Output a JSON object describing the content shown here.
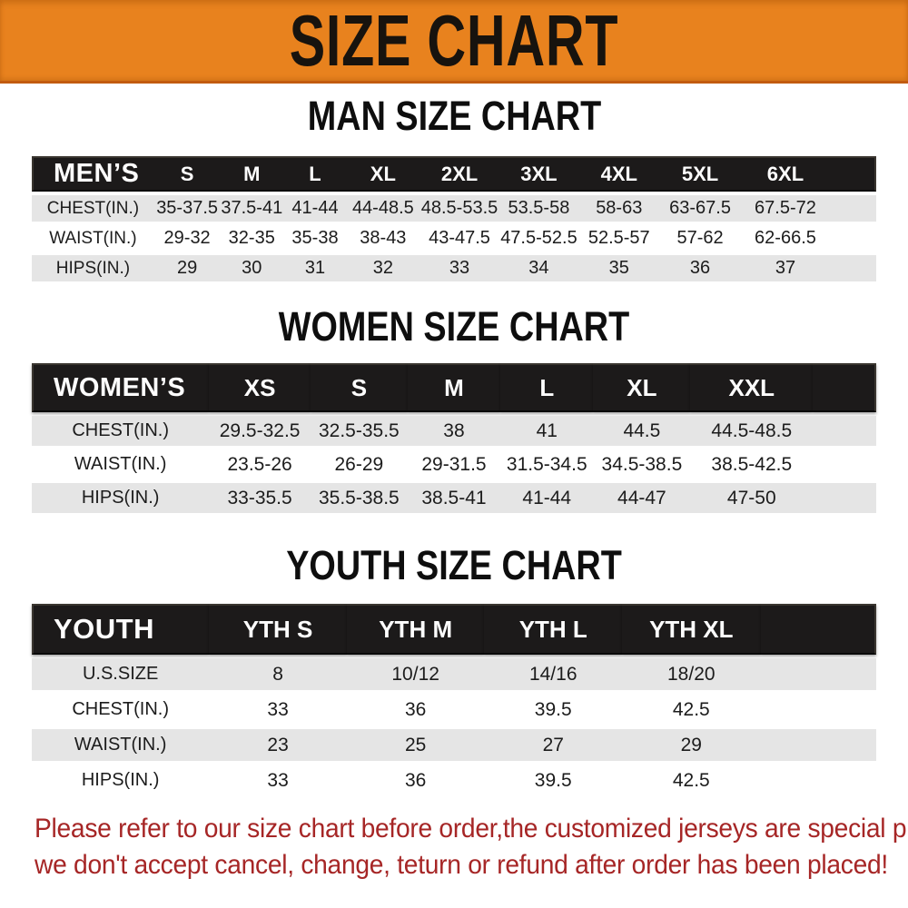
{
  "banner": {
    "title": "SIZE CHART",
    "bg_color": "#E8821E"
  },
  "sections": [
    {
      "heading": "MAN SIZE CHART",
      "corner_label": "MEN’S",
      "columns": [
        "S",
        "M",
        "L",
        "XL",
        "2XL",
        "3XL",
        "4XL",
        "5XL",
        "6XL"
      ],
      "rows": [
        {
          "label": "CHEST(IN.)",
          "values": [
            "35-37.5",
            "37.5-41",
            "41-44",
            "44-48.5",
            "48.5-53.5",
            "53.5-58",
            "58-63",
            "63-67.5",
            "67.5-72"
          ]
        },
        {
          "label": "WAIST(IN.)",
          "values": [
            "29-32",
            "32-35",
            "35-38",
            "38-43",
            "43-47.5",
            "47.5-52.5",
            "52.5-57",
            "57-62",
            "62-66.5"
          ]
        },
        {
          "label": "HIPS(IN.)",
          "values": [
            "29",
            "30",
            "31",
            "32",
            "33",
            "34",
            "35",
            "36",
            "37"
          ]
        }
      ]
    },
    {
      "heading": "WOMEN SIZE CHART",
      "corner_label": "WOMEN’S",
      "columns": [
        "XS",
        "S",
        "M",
        "L",
        "XL",
        "XXL"
      ],
      "rows": [
        {
          "label": "CHEST(IN.)",
          "values": [
            "29.5-32.5",
            "32.5-35.5",
            "38",
            "41",
            "44.5",
            "44.5-48.5"
          ]
        },
        {
          "label": "WAIST(IN.)",
          "values": [
            "23.5-26",
            "26-29",
            "29-31.5",
            "31.5-34.5",
            "34.5-38.5",
            "38.5-42.5"
          ]
        },
        {
          "label": "HIPS(IN.)",
          "values": [
            "33-35.5",
            "35.5-38.5",
            "38.5-41",
            "41-44",
            "44-47",
            "47-50"
          ]
        }
      ]
    },
    {
      "heading": "YOUTH SIZE CHART",
      "corner_label": "YOUTH",
      "columns": [
        "YTH S",
        "YTH M",
        "YTH L",
        "YTH XL"
      ],
      "rows": [
        {
          "label": "U.S.SIZE",
          "values": [
            "8",
            "10/12",
            "14/16",
            "18/20"
          ]
        },
        {
          "label": "CHEST(IN.)",
          "values": [
            "33",
            "36",
            "39.5",
            "42.5"
          ]
        },
        {
          "label": "WAIST(IN.)",
          "values": [
            "23",
            "25",
            "27",
            "29"
          ]
        },
        {
          "label": "HIPS(IN.)",
          "values": [
            "33",
            "36",
            "39.5",
            "42.5"
          ]
        }
      ]
    }
  ],
  "footnote": {
    "line1": "Please refer to our size chart before order,the customized jerseys are special products,",
    "line2": "we don't accept cancel, change, teturn or refund after order has been placed!",
    "color": "#A62626"
  }
}
